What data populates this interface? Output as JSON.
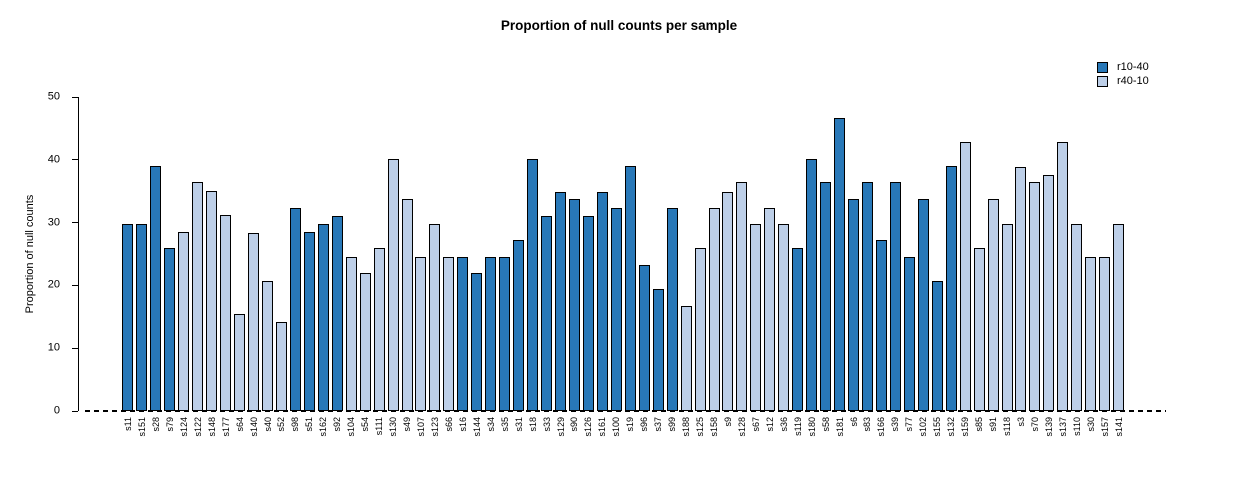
{
  "title": "Proportion of null counts per sample",
  "legend": {
    "items": [
      {
        "label": "r10-40",
        "color": "#2878b8"
      },
      {
        "label": "r40-10",
        "color": "#bdcfe8"
      }
    ]
  },
  "y_axis": {
    "label": "Proportion of null counts"
  },
  "chart_data": {
    "type": "bar",
    "title": "Proportion of null counts per sample",
    "xlabel": "",
    "ylabel": "Proportion of null counts",
    "ylim": [
      0,
      50
    ],
    "yticks": [
      0,
      10,
      20,
      30,
      40,
      50
    ],
    "grid": false,
    "legend_position": "top-right",
    "zero_line_style": "dashed",
    "series": [
      {
        "name": "r10-40",
        "color": "#2878b8"
      },
      {
        "name": "r40-10",
        "color": "#bdcfe8"
      }
    ],
    "bars": [
      {
        "x": "s11",
        "y": 29.8,
        "series": "r10-40"
      },
      {
        "x": "s151",
        "y": 29.8,
        "series": "r10-40"
      },
      {
        "x": "s28",
        "y": 39.0,
        "series": "r10-40"
      },
      {
        "x": "s79",
        "y": 25.9,
        "series": "r10-40"
      },
      {
        "x": "s124",
        "y": 28.5,
        "series": "r40-10"
      },
      {
        "x": "s122",
        "y": 36.4,
        "series": "r40-10"
      },
      {
        "x": "s148",
        "y": 35.0,
        "series": "r40-10"
      },
      {
        "x": "s177",
        "y": 31.2,
        "series": "r40-10"
      },
      {
        "x": "s64",
        "y": 15.5,
        "series": "r40-10"
      },
      {
        "x": "s140",
        "y": 28.4,
        "series": "r40-10"
      },
      {
        "x": "s40",
        "y": 20.7,
        "series": "r40-10"
      },
      {
        "x": "s52",
        "y": 14.2,
        "series": "r40-10"
      },
      {
        "x": "s98",
        "y": 32.4,
        "series": "r10-40"
      },
      {
        "x": "s51",
        "y": 28.5,
        "series": "r10-40"
      },
      {
        "x": "s162",
        "y": 29.8,
        "series": "r10-40"
      },
      {
        "x": "s92",
        "y": 31.1,
        "series": "r10-40"
      },
      {
        "x": "s104",
        "y": 24.5,
        "series": "r40-10"
      },
      {
        "x": "s54",
        "y": 22.0,
        "series": "r40-10"
      },
      {
        "x": "s111",
        "y": 25.9,
        "series": "r40-10"
      },
      {
        "x": "s130",
        "y": 40.1,
        "series": "r40-10"
      },
      {
        "x": "s49",
        "y": 33.8,
        "series": "r40-10"
      },
      {
        "x": "s107",
        "y": 24.5,
        "series": "r40-10"
      },
      {
        "x": "s123",
        "y": 29.8,
        "series": "r40-10"
      },
      {
        "x": "s66",
        "y": 24.5,
        "series": "r40-10"
      },
      {
        "x": "s16",
        "y": 24.5,
        "series": "r10-40"
      },
      {
        "x": "s144",
        "y": 22.0,
        "series": "r10-40"
      },
      {
        "x": "s34",
        "y": 24.5,
        "series": "r10-40"
      },
      {
        "x": "s35",
        "y": 24.5,
        "series": "r10-40"
      },
      {
        "x": "s31",
        "y": 27.2,
        "series": "r10-40"
      },
      {
        "x": "s18",
        "y": 40.1,
        "series": "r10-40"
      },
      {
        "x": "s33",
        "y": 31.1,
        "series": "r10-40"
      },
      {
        "x": "s129",
        "y": 34.9,
        "series": "r10-40"
      },
      {
        "x": "s90",
        "y": 33.7,
        "series": "r10-40"
      },
      {
        "x": "s126",
        "y": 31.1,
        "series": "r10-40"
      },
      {
        "x": "s161",
        "y": 34.9,
        "series": "r10-40"
      },
      {
        "x": "s100",
        "y": 32.4,
        "series": "r10-40"
      },
      {
        "x": "s19",
        "y": 39.0,
        "series": "r10-40"
      },
      {
        "x": "s96",
        "y": 23.2,
        "series": "r10-40"
      },
      {
        "x": "s37",
        "y": 19.5,
        "series": "r10-40"
      },
      {
        "x": "s99",
        "y": 32.4,
        "series": "r10-40"
      },
      {
        "x": "s188",
        "y": 16.8,
        "series": "r40-10"
      },
      {
        "x": "s125",
        "y": 25.9,
        "series": "r40-10"
      },
      {
        "x": "s158",
        "y": 32.4,
        "series": "r40-10"
      },
      {
        "x": "s9",
        "y": 34.9,
        "series": "r40-10"
      },
      {
        "x": "s128",
        "y": 36.4,
        "series": "r40-10"
      },
      {
        "x": "s67",
        "y": 29.8,
        "series": "r40-10"
      },
      {
        "x": "s12",
        "y": 32.4,
        "series": "r40-10"
      },
      {
        "x": "s36",
        "y": 29.8,
        "series": "r40-10"
      },
      {
        "x": "s119",
        "y": 25.9,
        "series": "r10-40"
      },
      {
        "x": "s180",
        "y": 40.1,
        "series": "r10-40"
      },
      {
        "x": "s58",
        "y": 36.4,
        "series": "r10-40"
      },
      {
        "x": "s181",
        "y": 46.7,
        "series": "r10-40"
      },
      {
        "x": "s6",
        "y": 33.7,
        "series": "r10-40"
      },
      {
        "x": "s83",
        "y": 36.4,
        "series": "r10-40"
      },
      {
        "x": "s166",
        "y": 27.2,
        "series": "r10-40"
      },
      {
        "x": "s39",
        "y": 36.4,
        "series": "r10-40"
      },
      {
        "x": "s77",
        "y": 24.5,
        "series": "r10-40"
      },
      {
        "x": "s102",
        "y": 33.7,
        "series": "r10-40"
      },
      {
        "x": "s155",
        "y": 20.7,
        "series": "r10-40"
      },
      {
        "x": "s132",
        "y": 39.0,
        "series": "r10-40"
      },
      {
        "x": "s159",
        "y": 42.8,
        "series": "r40-10"
      },
      {
        "x": "s85",
        "y": 25.9,
        "series": "r40-10"
      },
      {
        "x": "s91",
        "y": 33.7,
        "series": "r40-10"
      },
      {
        "x": "s118",
        "y": 29.8,
        "series": "r40-10"
      },
      {
        "x": "s3",
        "y": 38.9,
        "series": "r40-10"
      },
      {
        "x": "s70",
        "y": 36.4,
        "series": "r40-10"
      },
      {
        "x": "s139",
        "y": 37.6,
        "series": "r40-10"
      },
      {
        "x": "s137",
        "y": 42.8,
        "series": "r40-10"
      },
      {
        "x": "s110",
        "y": 29.8,
        "series": "r40-10"
      },
      {
        "x": "s30",
        "y": 24.5,
        "series": "r40-10"
      },
      {
        "x": "s157",
        "y": 24.5,
        "series": "r40-10"
      },
      {
        "x": "s141",
        "y": 29.8,
        "series": "r40-10"
      }
    ]
  }
}
